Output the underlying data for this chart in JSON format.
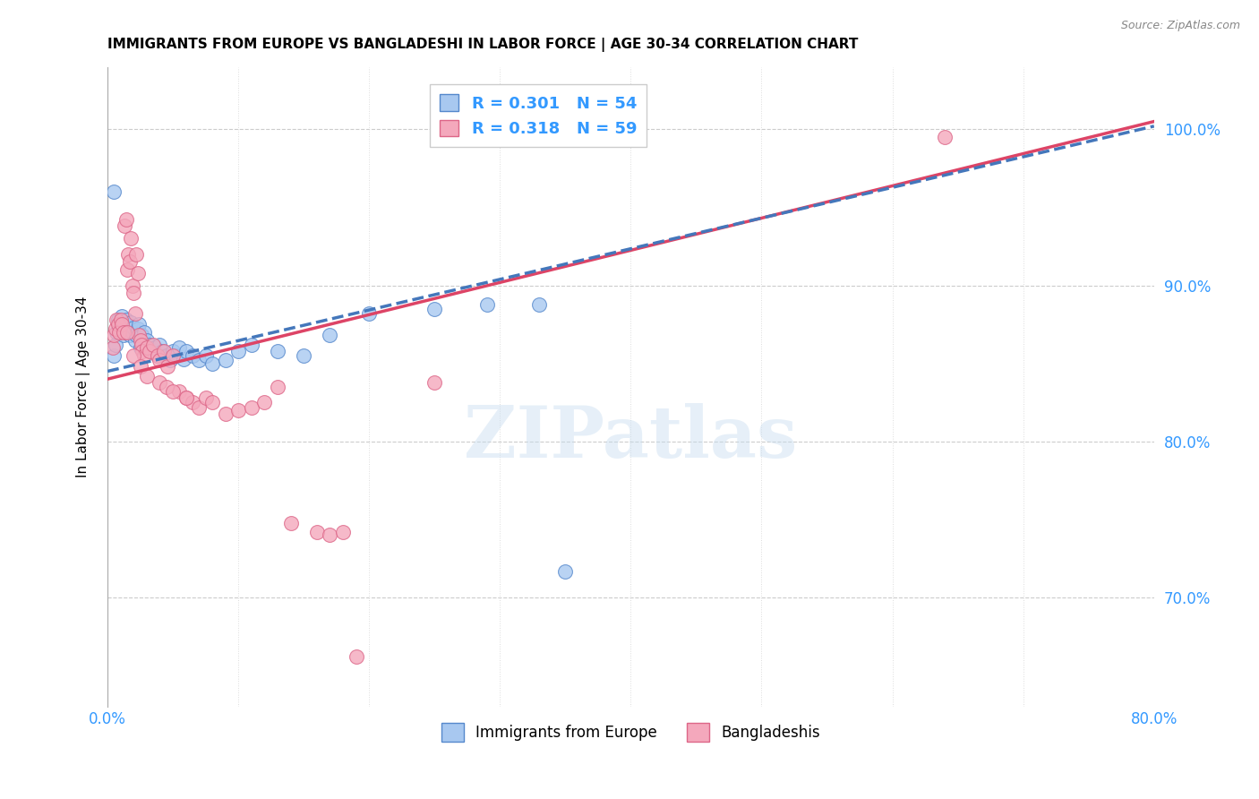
{
  "title": "IMMIGRANTS FROM EUROPE VS BANGLADESHI IN LABOR FORCE | AGE 30-34 CORRELATION CHART",
  "source": "Source: ZipAtlas.com",
  "ylabel": "In Labor Force | Age 30-34",
  "xlim": [
    0.0,
    0.8
  ],
  "ylim": [
    0.63,
    1.04
  ],
  "legend_blue_label": "Immigrants from Europe",
  "legend_pink_label": "Bangladeshis",
  "R_blue": 0.301,
  "N_blue": 54,
  "R_pink": 0.318,
  "N_pink": 59,
  "blue_color": "#a8c8f0",
  "pink_color": "#f4a8bc",
  "blue_edge": "#5588cc",
  "pink_edge": "#dd6688",
  "trend_blue": "#4477bb",
  "trend_pink": "#dd4466",
  "watermark_text": "ZIPatlas",
  "trend_blue_x0": 0.0,
  "trend_blue_y0": 0.845,
  "trend_blue_x1": 0.8,
  "trend_blue_y1": 1.002,
  "trend_pink_x0": 0.0,
  "trend_pink_y0": 0.84,
  "trend_pink_x1": 0.8,
  "trend_pink_y1": 1.005,
  "blue_scatter": [
    [
      0.005,
      0.855
    ],
    [
      0.006,
      0.862
    ],
    [
      0.007,
      0.87
    ],
    [
      0.008,
      0.878
    ],
    [
      0.009,
      0.873
    ],
    [
      0.01,
      0.876
    ],
    [
      0.011,
      0.88
    ],
    [
      0.012,
      0.868
    ],
    [
      0.013,
      0.875
    ],
    [
      0.014,
      0.878
    ],
    [
      0.015,
      0.87
    ],
    [
      0.016,
      0.873
    ],
    [
      0.017,
      0.868
    ],
    [
      0.018,
      0.876
    ],
    [
      0.019,
      0.87
    ],
    [
      0.02,
      0.873
    ],
    [
      0.021,
      0.865
    ],
    [
      0.022,
      0.868
    ],
    [
      0.023,
      0.872
    ],
    [
      0.024,
      0.875
    ],
    [
      0.025,
      0.86
    ],
    [
      0.026,
      0.868
    ],
    [
      0.027,
      0.862
    ],
    [
      0.028,
      0.87
    ],
    [
      0.03,
      0.865
    ],
    [
      0.032,
      0.862
    ],
    [
      0.034,
      0.858
    ],
    [
      0.036,
      0.86
    ],
    [
      0.038,
      0.855
    ],
    [
      0.04,
      0.862
    ],
    [
      0.042,
      0.858
    ],
    [
      0.045,
      0.855
    ],
    [
      0.048,
      0.852
    ],
    [
      0.05,
      0.858
    ],
    [
      0.052,
      0.855
    ],
    [
      0.055,
      0.86
    ],
    [
      0.058,
      0.853
    ],
    [
      0.06,
      0.858
    ],
    [
      0.065,
      0.855
    ],
    [
      0.07,
      0.852
    ],
    [
      0.075,
      0.855
    ],
    [
      0.08,
      0.85
    ],
    [
      0.09,
      0.852
    ],
    [
      0.1,
      0.858
    ],
    [
      0.11,
      0.862
    ],
    [
      0.13,
      0.858
    ],
    [
      0.15,
      0.855
    ],
    [
      0.17,
      0.868
    ],
    [
      0.2,
      0.882
    ],
    [
      0.25,
      0.885
    ],
    [
      0.29,
      0.888
    ],
    [
      0.33,
      0.888
    ],
    [
      0.005,
      0.96
    ],
    [
      0.35,
      0.717
    ]
  ],
  "pink_scatter": [
    [
      0.004,
      0.86
    ],
    [
      0.005,
      0.868
    ],
    [
      0.006,
      0.872
    ],
    [
      0.007,
      0.878
    ],
    [
      0.008,
      0.875
    ],
    [
      0.009,
      0.87
    ],
    [
      0.01,
      0.878
    ],
    [
      0.011,
      0.875
    ],
    [
      0.012,
      0.87
    ],
    [
      0.013,
      0.938
    ],
    [
      0.014,
      0.942
    ],
    [
      0.015,
      0.91
    ],
    [
      0.016,
      0.92
    ],
    [
      0.017,
      0.915
    ],
    [
      0.018,
      0.93
    ],
    [
      0.019,
      0.9
    ],
    [
      0.02,
      0.895
    ],
    [
      0.021,
      0.882
    ],
    [
      0.022,
      0.92
    ],
    [
      0.023,
      0.908
    ],
    [
      0.024,
      0.868
    ],
    [
      0.025,
      0.865
    ],
    [
      0.026,
      0.862
    ],
    [
      0.027,
      0.858
    ],
    [
      0.028,
      0.855
    ],
    [
      0.03,
      0.86
    ],
    [
      0.032,
      0.858
    ],
    [
      0.035,
      0.862
    ],
    [
      0.038,
      0.855
    ],
    [
      0.04,
      0.852
    ],
    [
      0.043,
      0.858
    ],
    [
      0.046,
      0.848
    ],
    [
      0.05,
      0.855
    ],
    [
      0.055,
      0.832
    ],
    [
      0.06,
      0.828
    ],
    [
      0.065,
      0.825
    ],
    [
      0.07,
      0.822
    ],
    [
      0.075,
      0.828
    ],
    [
      0.08,
      0.825
    ],
    [
      0.09,
      0.818
    ],
    [
      0.1,
      0.82
    ],
    [
      0.11,
      0.822
    ],
    [
      0.12,
      0.825
    ],
    [
      0.13,
      0.835
    ],
    [
      0.015,
      0.87
    ],
    [
      0.02,
      0.855
    ],
    [
      0.025,
      0.848
    ],
    [
      0.03,
      0.842
    ],
    [
      0.04,
      0.838
    ],
    [
      0.045,
      0.835
    ],
    [
      0.05,
      0.832
    ],
    [
      0.06,
      0.828
    ],
    [
      0.14,
      0.748
    ],
    [
      0.16,
      0.742
    ],
    [
      0.17,
      0.74
    ],
    [
      0.18,
      0.742
    ],
    [
      0.25,
      0.838
    ],
    [
      0.64,
      0.995
    ],
    [
      0.19,
      0.662
    ]
  ]
}
